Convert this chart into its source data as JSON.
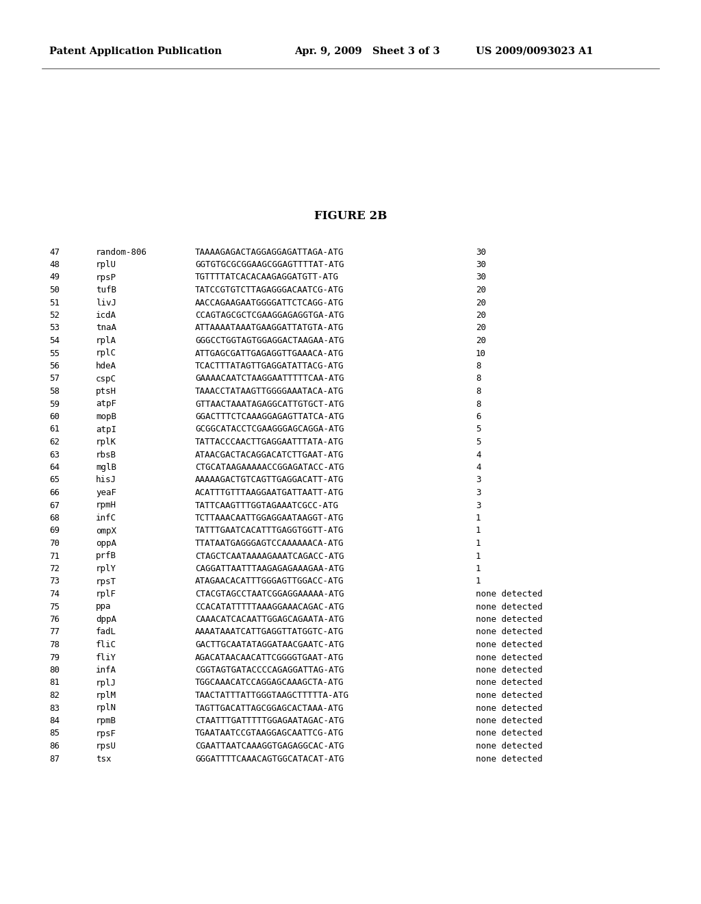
{
  "header_left": "Patent Application Publication",
  "header_mid": "Apr. 9, 2009   Sheet 3 of 3",
  "header_right": "US 2009/0093023 A1",
  "figure_title": "FIGURE 2B",
  "rows": [
    [
      47,
      "random-806",
      "TAAAAGAGACTAGGAGGAGATTAGA-ATG",
      "30"
    ],
    [
      48,
      "rplU",
      "GGTGTGCGCGGAAGCGGAGTTTTAT-ATG",
      "30"
    ],
    [
      49,
      "rpsP",
      "TGTTTTATCACACAAGAGGATGTT-ATG",
      "30"
    ],
    [
      50,
      "tufB",
      "TATCCGTGTCTTAGAGGGACAATCG-ATG",
      "20"
    ],
    [
      51,
      "livJ",
      "AACCAGAAGAATGGGGATTCTCAGG-ATG",
      "20"
    ],
    [
      52,
      "icdA",
      "CCAGTAGCGCTCGAAGGAGAGGTGA-ATG",
      "20"
    ],
    [
      53,
      "tnaA",
      "ATTAAAATAAATGAAGGATTATGTA-ATG",
      "20"
    ],
    [
      54,
      "rplA",
      "GGGCCTGGTAGTGGAGGACTAAGAA-ATG",
      "20"
    ],
    [
      55,
      "rplC",
      "ATTGAGCGATTGAGAGGTTGAAACA-ATG",
      "10"
    ],
    [
      56,
      "hdeA",
      "TCACTTTATAGTTGAGGATATTACG-ATG",
      "8"
    ],
    [
      57,
      "cspC",
      "GAAAACAATCTAAGGAATTTTTCAA-ATG",
      "8"
    ],
    [
      58,
      "ptsH",
      "TAAACCTATAAGTTGGGGAAATACA-ATG",
      "8"
    ],
    [
      59,
      "atpF",
      "GTTAACTAAATAGAGGCATTGTGCT-ATG",
      "8"
    ],
    [
      60,
      "mopB",
      "GGACTTTCTCAAAGGAGAGTTATCA-ATG",
      "6"
    ],
    [
      61,
      "atpI",
      "GCGGCATACCTCGAAGGGAGCAGGA-ATG",
      "5"
    ],
    [
      62,
      "rplK",
      "TATTACCCAACTTGAGGAATTTATA-ATG",
      "5"
    ],
    [
      63,
      "rbsB",
      "ATAACGACTACAGGACATCTTGAAT-ATG",
      "4"
    ],
    [
      64,
      "mglB",
      "CTGCATAAGAAAAACCGGAGATACC-ATG",
      "4"
    ],
    [
      65,
      "hisJ",
      "AAAAAGACTGTCAGTTGAGGACATT-ATG",
      "3"
    ],
    [
      66,
      "yeaF",
      "ACATTTGTTTAAGGAATGATTAATT-ATG",
      "3"
    ],
    [
      67,
      "rpmH",
      "TATTCAAGTTTGGTAGAAATCGCC-ATG",
      "3"
    ],
    [
      68,
      "infC",
      "TCTTAAACAATTGGAGGAATAAGGT-ATG",
      "1"
    ],
    [
      69,
      "ompX",
      "TATTTGAATCACATTTGAGGTGGTT-ATG",
      "1"
    ],
    [
      70,
      "oppA",
      "TTATAATGAGGGAGTCCAAAAAACA-ATG",
      "1"
    ],
    [
      71,
      "prfB",
      "CTAGCTCAATAAAAGAAATCAGACC-ATG",
      "1"
    ],
    [
      72,
      "rplY",
      "CAGGATTAATTTAAGAGAGAAAGAA-ATG",
      "1"
    ],
    [
      73,
      "rpsT",
      "ATAGAACACATTTGGGAGTTGGACC-ATG",
      "1"
    ],
    [
      74,
      "rplF",
      "CTACGTAGCCTAATCGGAGGAAAAA-ATG",
      "none detected"
    ],
    [
      75,
      "ppa",
      "CCACATATTTTTAAAGGAAACAGAC-ATG",
      "none detected"
    ],
    [
      76,
      "dppA",
      "CAAACATCACAATTGGAGCAGAATA-ATG",
      "none detected"
    ],
    [
      77,
      "fadL",
      "AAAATAAATCATTGAGGTTATGGTC-ATG",
      "none detected"
    ],
    [
      78,
      "fliC",
      "GACTTGCAATATAGGATAACGAATC-ATG",
      "none detected"
    ],
    [
      79,
      "fliY",
      "AGACATAACAACATTCGGGGTGAAT-ATG",
      "none detected"
    ],
    [
      80,
      "infA",
      "CGGTAGTGATACCCCAGAGGATTAG-ATG",
      "none detected"
    ],
    [
      81,
      "rplJ",
      "TGGCAAACATCCAGGAGCAAAGCTA-ATG",
      "none detected"
    ],
    [
      82,
      "rplM",
      "TAACTATTTATTGGGTAAGCTTTTTA-ATG",
      "none detected"
    ],
    [
      83,
      "rplN",
      "TAGTTGACATTAGCGGAGCACTAAA-ATG",
      "none detected"
    ],
    [
      84,
      "rpmB",
      "CTAATTTGATTTTTGGAGAATAGAC-ATG",
      "none detected"
    ],
    [
      85,
      "rpsF",
      "TGAATAATCCGTAAGGAGCAATTCG-ATG",
      "none detected"
    ],
    [
      86,
      "rpsU",
      "CGAATTAATCAAAGGTGAGAGGCAC-ATG",
      "none detected"
    ],
    [
      87,
      "tsx",
      "GGGATTTTCAAACAGTGGCATACAT-ATG",
      "none detected"
    ]
  ],
  "bg_color": "#ffffff",
  "text_color": "#000000",
  "header_fontsize": 10.5,
  "title_fontsize": 12,
  "data_fontsize": 9.0
}
